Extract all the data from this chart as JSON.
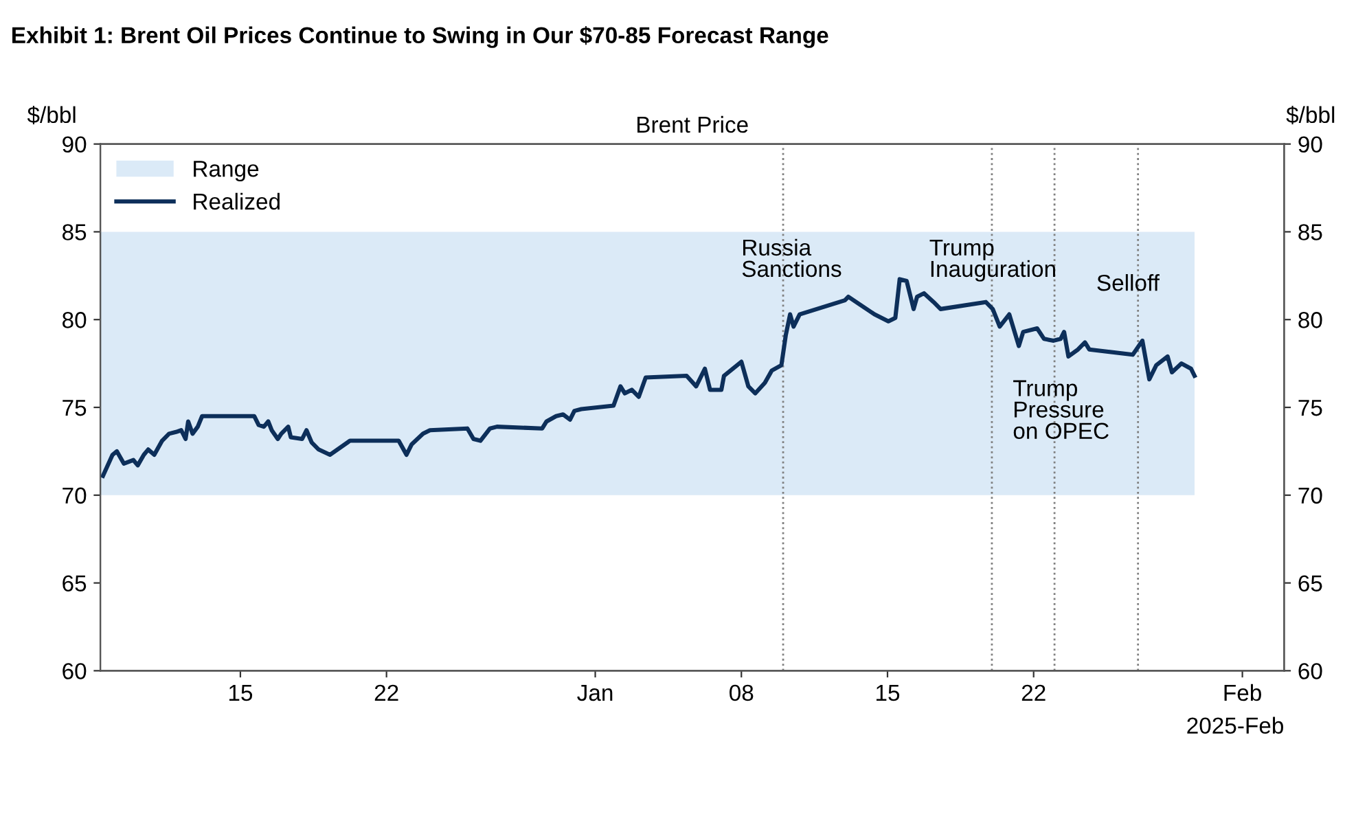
{
  "chart_data": {
    "type": "line",
    "title": "Exhibit 1: Brent Oil Prices Continue to Swing in Our $70-85 Forecast Range",
    "subtitle": "Brent Price",
    "xlabel": "2025-Feb",
    "ylabel": "$/bbl",
    "y2label": "$/bbl",
    "xlim": [
      "2024-12-08T07:00",
      "2025-02-03T00:00"
    ],
    "xticks": [
      {
        "value": "2024-12-15",
        "label": "15"
      },
      {
        "value": "2024-12-22",
        "label": "22"
      },
      {
        "value": "2025-01-01",
        "label": "Jan"
      },
      {
        "value": "2025-01-08",
        "label": "08"
      },
      {
        "value": "2025-01-15",
        "label": "15"
      },
      {
        "value": "2025-01-22",
        "label": "22"
      },
      {
        "value": "2025-02-01",
        "label": "Feb"
      }
    ],
    "ylim": [
      60,
      90
    ],
    "yticks": [
      60,
      65,
      70,
      75,
      80,
      85,
      90
    ],
    "y2lim": [
      60,
      90
    ],
    "y2ticks": [
      60,
      65,
      70,
      75,
      80,
      85,
      90
    ],
    "grid": false,
    "legend": "top left",
    "marker": "none",
    "line_style": "solid",
    "series": [
      {
        "name": "Realized",
        "color": "#0d2f5a",
        "x": [
          "2024-12-08T10:00",
          "2024-12-08T21:00",
          "2024-12-09T02:00",
          "2024-12-09T10:00",
          "2024-12-09T21:00",
          "2024-12-10T02:00",
          "2024-12-10T09:00",
          "2024-12-10T14:00",
          "2024-12-10T21:00",
          "2024-12-11T06:00",
          "2024-12-11T14:00",
          "2024-12-11T22:00",
          "2024-12-12T04:00",
          "2024-12-12T09:00",
          "2024-12-12T12:00",
          "2024-12-12T17:00",
          "2024-12-12T23:00",
          "2024-12-13T04:00",
          "2024-12-15T00:00",
          "2024-12-15T16:00",
          "2024-12-15T21:00",
          "2024-12-16T03:00",
          "2024-12-16T08:00",
          "2024-12-16T12:00",
          "2024-12-16T19:00",
          "2024-12-16T23:00",
          "2024-12-17T07:00",
          "2024-12-17T10:00",
          "2024-12-17T23:00",
          "2024-12-18T04:00",
          "2024-12-18T10:00",
          "2024-12-18T18:00",
          "2024-12-19T07:00",
          "2024-12-20T06:00",
          "2024-12-22T14:00",
          "2024-12-22T23:00",
          "2024-12-23T05:00",
          "2024-12-23T18:00",
          "2024-12-24T02:00",
          "2024-12-25T21:00",
          "2024-12-26T04:00",
          "2024-12-26T12:00",
          "2024-12-26T23:00",
          "2024-12-27T07:00",
          "2024-12-29T11:00",
          "2024-12-29T16:00",
          "2024-12-30T03:00",
          "2024-12-30T11:00",
          "2024-12-30T19:00",
          "2024-12-31T00:00",
          "2024-12-31T08:00",
          "2025-01-01T21:00",
          "2025-01-02T05:00",
          "2025-01-02T10:00",
          "2025-01-02T18:00",
          "2025-01-03T02:00",
          "2025-01-03T10:00",
          "2025-01-05T09:00",
          "2025-01-05T20:00",
          "2025-01-06T06:00",
          "2025-01-06T12:00",
          "2025-01-07T01:00",
          "2025-01-07T04:00",
          "2025-01-08T00:00",
          "2025-01-08T08:00",
          "2025-01-08T16:00",
          "2025-01-09T03:00",
          "2025-01-09T11:00",
          "2025-01-09T22:00",
          "2025-01-10T03:00",
          "2025-01-10T08:00",
          "2025-01-10T12:00",
          "2025-01-10T19:00",
          "2025-01-12T23:00",
          "2025-01-13T03:00",
          "2025-01-13T15:00",
          "2025-01-14T09:00",
          "2025-01-15T01:00",
          "2025-01-15T09:00",
          "2025-01-15T14:00",
          "2025-01-15T22:00",
          "2025-01-16T06:00",
          "2025-01-16T10:00",
          "2025-01-16T18:00",
          "2025-01-17T05:00",
          "2025-01-17T13:00",
          "2025-01-19T17:00",
          "2025-01-20T01:00",
          "2025-01-20T09:00",
          "2025-01-20T20:00",
          "2025-01-21T07:00",
          "2025-01-21T12:00",
          "2025-01-22T04:00",
          "2025-01-22T12:00",
          "2025-01-22T23:00",
          "2025-01-23T07:00",
          "2025-01-23T11:00",
          "2025-01-23T16:00",
          "2025-01-24T03:00",
          "2025-01-24T11:00",
          "2025-01-24T16:00",
          "2025-01-26T18:00",
          "2025-01-27T05:00",
          "2025-01-27T13:00",
          "2025-01-27T21:00",
          "2025-01-28T10:00",
          "2025-01-28T15:00",
          "2025-01-29T02:00",
          "2025-01-29T13:00",
          "2025-01-29T17:00"
        ],
        "values": [
          71.1,
          72.3,
          72.5,
          71.8,
          72.0,
          71.7,
          72.3,
          72.6,
          72.3,
          73.1,
          73.5,
          73.6,
          73.7,
          73.2,
          74.2,
          73.5,
          73.9,
          74.5,
          74.5,
          74.5,
          74.0,
          73.9,
          74.2,
          73.7,
          73.2,
          73.5,
          73.9,
          73.3,
          73.2,
          73.7,
          73.0,
          72.6,
          72.3,
          73.1,
          73.1,
          72.3,
          72.9,
          73.5,
          73.7,
          73.8,
          73.2,
          73.1,
          73.8,
          73.9,
          73.8,
          74.2,
          74.5,
          74.6,
          74.3,
          74.8,
          74.9,
          75.1,
          76.2,
          75.8,
          76.0,
          75.6,
          76.7,
          76.8,
          76.2,
          77.2,
          76.0,
          76.0,
          76.8,
          77.6,
          76.2,
          75.8,
          76.4,
          77.1,
          77.4,
          79.1,
          80.3,
          79.6,
          80.3,
          81.1,
          81.3,
          80.9,
          80.3,
          79.9,
          80.1,
          82.3,
          82.2,
          80.6,
          81.3,
          81.5,
          81.0,
          80.6,
          81.0,
          80.6,
          79.6,
          80.3,
          78.5,
          79.3,
          79.5,
          78.9,
          78.8,
          78.9,
          79.3,
          77.9,
          78.3,
          78.7,
          78.3,
          78.0,
          78.8,
          76.6,
          77.4,
          77.9,
          77.0,
          77.5,
          77.2,
          76.8
        ]
      }
    ],
    "bands": [
      {
        "axis": "y",
        "from": 70,
        "to": 85,
        "label": "Range",
        "color": "#dbeaf7"
      }
    ],
    "ref_lines": [
      {
        "axis": "x",
        "value": "2025-01-10",
        "label": "Russia\nSanctions",
        "color": "#808080",
        "line_style": "dotted"
      },
      {
        "axis": "x",
        "value": "2025-01-20",
        "label": "Trump\nInauguration",
        "color": "#808080",
        "line_style": "dotted"
      },
      {
        "axis": "x",
        "value": "2025-01-23",
        "label": "Trump\nPressure\non OPEC",
        "color": "#808080",
        "line_style": "dotted"
      },
      {
        "axis": "x",
        "value": "2025-01-27",
        "label": "Selloff",
        "color": "#808080",
        "line_style": "dotted"
      }
    ]
  }
}
